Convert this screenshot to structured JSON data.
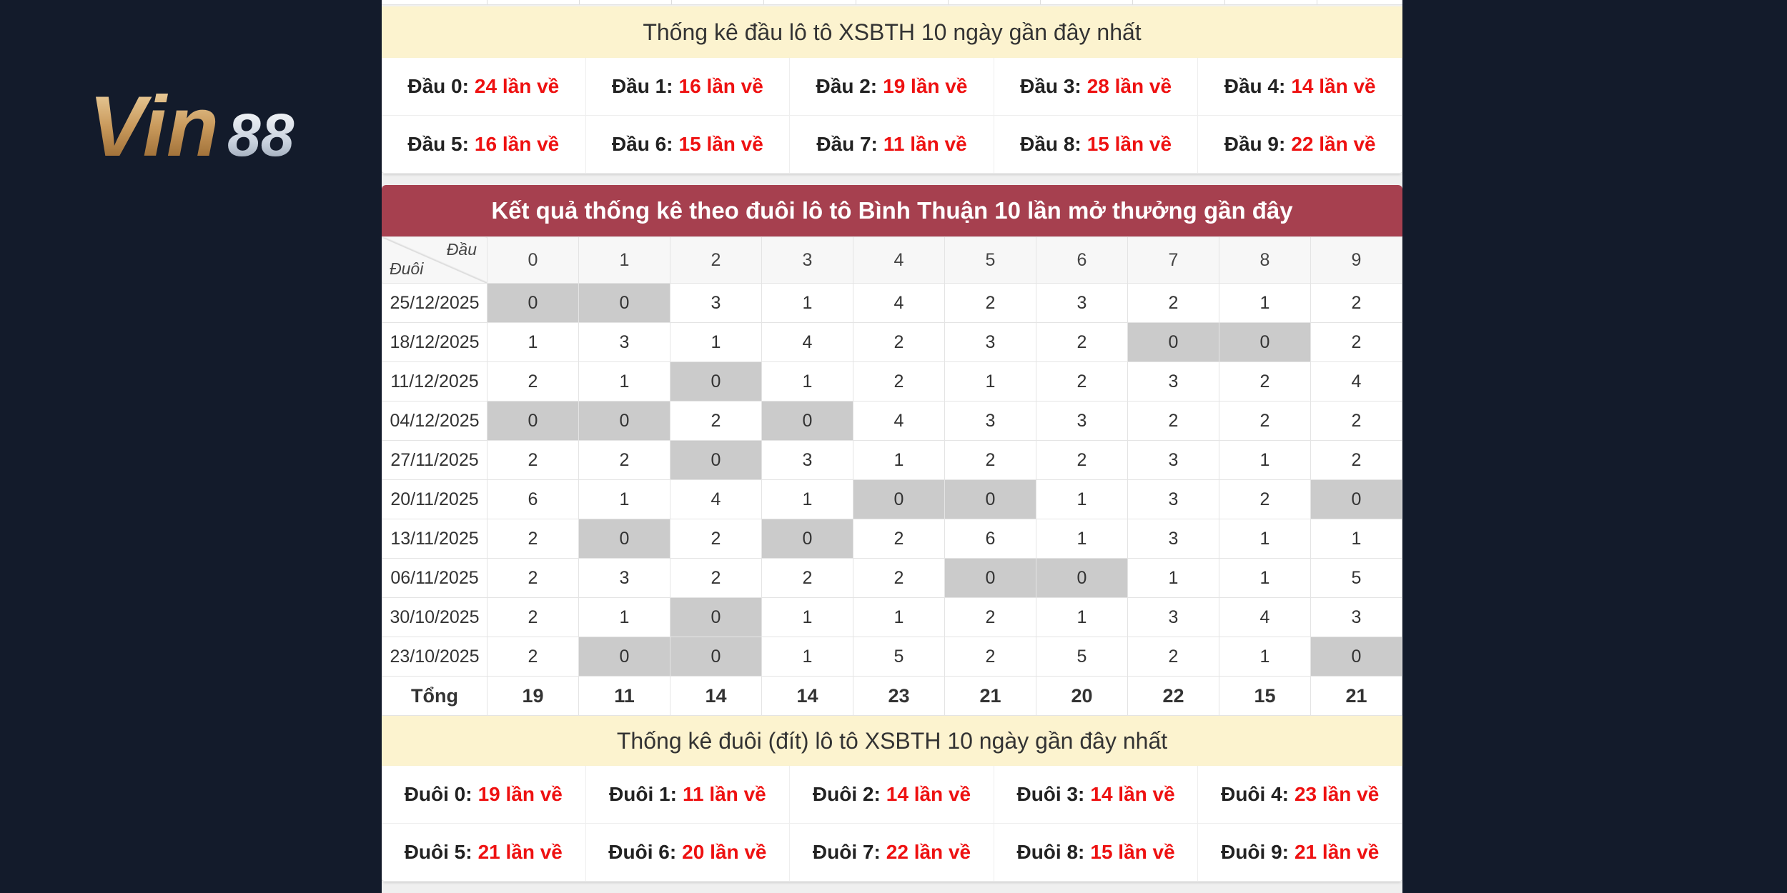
{
  "logo": {
    "text_gold": "Vin",
    "text_silver": "88"
  },
  "dau_stats": {
    "title": "Thống kê đầu lô tô XSBTH 10 ngày gần đây nhất",
    "items": [
      {
        "label": "Đầu 0:",
        "value": "24 lần về"
      },
      {
        "label": "Đầu 1:",
        "value": "16 lần về"
      },
      {
        "label": "Đầu 2:",
        "value": "19 lần về"
      },
      {
        "label": "Đầu 3:",
        "value": "28 lần về"
      },
      {
        "label": "Đầu 4:",
        "value": "14 lần về"
      },
      {
        "label": "Đầu 5:",
        "value": "16 lần về"
      },
      {
        "label": "Đầu 6:",
        "value": "15 lần về"
      },
      {
        "label": "Đầu 7:",
        "value": "11 lần về"
      },
      {
        "label": "Đầu 8:",
        "value": "15 lần về"
      },
      {
        "label": "Đầu 9:",
        "value": "22 lần về"
      }
    ]
  },
  "duoi_table": {
    "title": "Kết quả thống kê theo đuôi lô tô Bình Thuận 10 lần mở thưởng gần đây",
    "corner_top": "Đầu",
    "corner_bottom": "Đuôi",
    "columns": [
      "0",
      "1",
      "2",
      "3",
      "4",
      "5",
      "6",
      "7",
      "8",
      "9"
    ],
    "rows": [
      {
        "date": "25/12/2025",
        "values": [
          "0",
          "0",
          "3",
          "1",
          "4",
          "2",
          "3",
          "2",
          "1",
          "2"
        ]
      },
      {
        "date": "18/12/2025",
        "values": [
          "1",
          "3",
          "1",
          "4",
          "2",
          "3",
          "2",
          "0",
          "0",
          "2"
        ]
      },
      {
        "date": "11/12/2025",
        "values": [
          "2",
          "1",
          "0",
          "1",
          "2",
          "1",
          "2",
          "3",
          "2",
          "4"
        ]
      },
      {
        "date": "04/12/2025",
        "values": [
          "0",
          "0",
          "2",
          "0",
          "4",
          "3",
          "3",
          "2",
          "2",
          "2"
        ]
      },
      {
        "date": "27/11/2025",
        "values": [
          "2",
          "2",
          "0",
          "3",
          "1",
          "2",
          "2",
          "3",
          "1",
          "2"
        ]
      },
      {
        "date": "20/11/2025",
        "values": [
          "6",
          "1",
          "4",
          "1",
          "0",
          "0",
          "1",
          "3",
          "2",
          "0"
        ]
      },
      {
        "date": "13/11/2025",
        "values": [
          "2",
          "0",
          "2",
          "0",
          "2",
          "6",
          "1",
          "3",
          "1",
          "1"
        ]
      },
      {
        "date": "06/11/2025",
        "values": [
          "2",
          "3",
          "2",
          "2",
          "2",
          "0",
          "0",
          "1",
          "1",
          "5"
        ]
      },
      {
        "date": "30/10/2025",
        "values": [
          "2",
          "1",
          "0",
          "1",
          "1",
          "2",
          "1",
          "3",
          "4",
          "3"
        ]
      },
      {
        "date": "23/10/2025",
        "values": [
          "2",
          "0",
          "0",
          "1",
          "5",
          "2",
          "5",
          "2",
          "1",
          "0"
        ]
      }
    ],
    "total_label": "Tổng",
    "totals": [
      "19",
      "11",
      "14",
      "14",
      "23",
      "21",
      "20",
      "22",
      "15",
      "21"
    ],
    "zero_highlight_color": "#cbcbcb"
  },
  "duoi_stats": {
    "title": "Thống kê đuôi (đít) lô tô XSBTH 10 ngày gần đây nhất",
    "items": [
      {
        "label": "Đuôi 0:",
        "value": "19 lần về"
      },
      {
        "label": "Đuôi 1:",
        "value": "11 lần về"
      },
      {
        "label": "Đuôi 2:",
        "value": "14 lần về"
      },
      {
        "label": "Đuôi 3:",
        "value": "14 lần về"
      },
      {
        "label": "Đuôi 4:",
        "value": "23 lần về"
      },
      {
        "label": "Đuôi 5:",
        "value": "21 lần về"
      },
      {
        "label": "Đuôi 6:",
        "value": "20 lần về"
      },
      {
        "label": "Đuôi 7:",
        "value": "22 lần về"
      },
      {
        "label": "Đuôi 8:",
        "value": "15 lần về"
      },
      {
        "label": "Đuôi 9:",
        "value": "21 lần về"
      }
    ]
  },
  "colors": {
    "header_red": "#a6404f",
    "title_yellow": "#fcf3cf",
    "count_red": "#ee1111",
    "background": "#131b2b"
  }
}
